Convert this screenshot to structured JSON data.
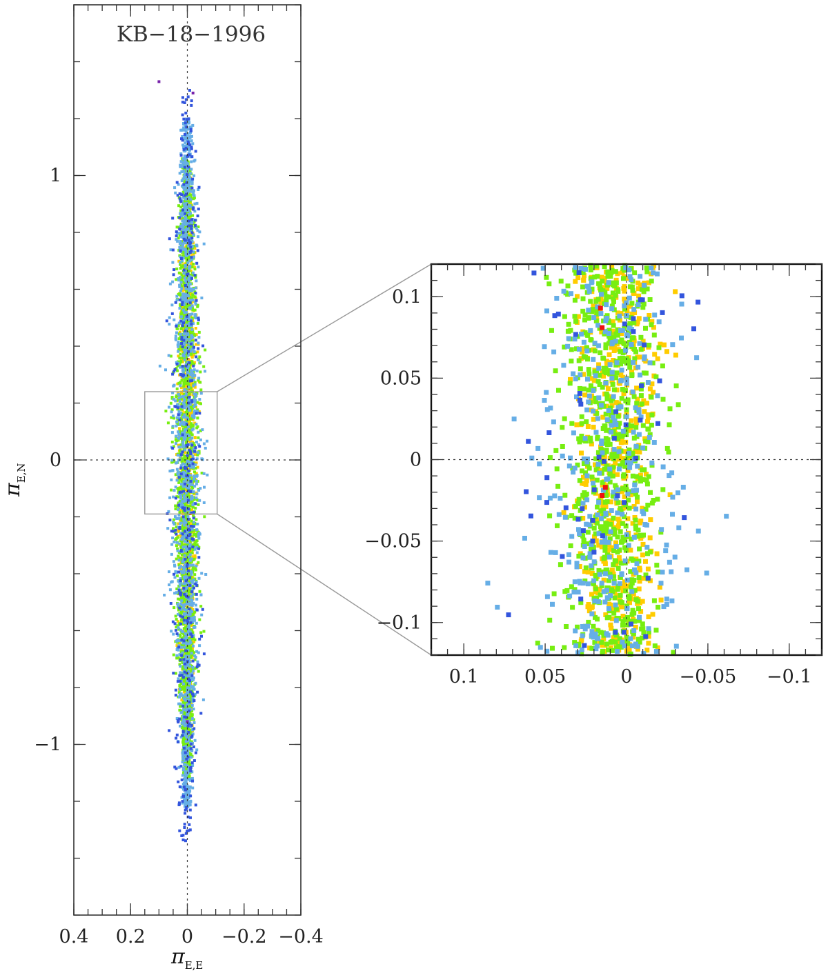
{
  "chart_data": [
    {
      "id": "main",
      "type": "scatter",
      "title": "KB−18−1996",
      "xlabel": {
        "symbol": "π",
        "subscript": "E,E"
      },
      "ylabel": {
        "symbol": "π",
        "subscript": "E,N"
      },
      "xlim": [
        0.4,
        -0.4
      ],
      "ylim": [
        -1.6,
        1.6
      ],
      "x_axis_inverted": true,
      "x_ticks": [
        {
          "value": 0.4,
          "label": "0.4"
        },
        {
          "value": 0.2,
          "label": "0.2"
        },
        {
          "value": 0,
          "label": "0"
        },
        {
          "value": -0.2,
          "label": "−0.2"
        },
        {
          "value": -0.4,
          "label": "−0.4"
        }
      ],
      "y_ticks": [
        {
          "value": 1,
          "label": "1"
        },
        {
          "value": 0,
          "label": "0"
        },
        {
          "value": -1,
          "label": "−1"
        }
      ],
      "zero_lines": true,
      "legend": "none",
      "zoom_box": {
        "x": [
          0.15,
          -0.105
        ],
        "y": [
          -0.19,
          0.24
        ]
      },
      "colors": {
        "red": "#ee1111",
        "yellow": "#ffcc00",
        "green": "#77ee11",
        "lightblue": "#66aee6",
        "blue": "#3355dd",
        "purple": "#7722aa"
      },
      "series": [
        {
          "color_key": "red",
          "x_center": 0.0,
          "x_sigma": 0.009,
          "y_range": [
            -0.68,
            0.74
          ],
          "count": 70
        },
        {
          "color_key": "yellow",
          "x_center": 0.0,
          "x_sigma": 0.015,
          "y_range": [
            -1.02,
            1.0
          ],
          "count": 1500
        },
        {
          "color_key": "green",
          "x_center": 0.002,
          "x_sigma": 0.021,
          "y_range": [
            -1.12,
            1.06
          ],
          "count": 1800
        },
        {
          "color_key": "lightblue",
          "x_center": 0.002,
          "x_sigma": 0.026,
          "y_range": [
            -1.22,
            1.2
          ],
          "count": 1300
        },
        {
          "color_key": "blue",
          "x_center": 0.004,
          "x_sigma": 0.03,
          "y_range": [
            -1.35,
            1.3
          ],
          "count": 380
        },
        {
          "color_key": "purple",
          "points": [
            [
              0.1,
              1.33
            ],
            [
              -0.02,
              1.29
            ],
            [
              0.0,
              -0.92
            ]
          ]
        }
      ]
    },
    {
      "id": "inset",
      "type": "scatter",
      "title": "",
      "xlim": [
        0.12,
        -0.12
      ],
      "ylim": [
        -0.12,
        0.12
      ],
      "x_axis_inverted": true,
      "x_ticks": [
        {
          "value": 0.1,
          "label": "0.1"
        },
        {
          "value": 0.05,
          "label": "0.05"
        },
        {
          "value": 0,
          "label": "0"
        },
        {
          "value": -0.05,
          "label": "−0.05"
        },
        {
          "value": -0.1,
          "label": "−0.1"
        }
      ],
      "y_ticks": [
        {
          "value": 0.1,
          "label": "0.1"
        },
        {
          "value": 0.05,
          "label": "0.05"
        },
        {
          "value": 0,
          "label": "0"
        },
        {
          "value": -0.05,
          "label": "−0.05"
        },
        {
          "value": -0.1,
          "label": "−0.1"
        }
      ],
      "zero_lines": true,
      "legend": "none",
      "series": [
        {
          "color_key": "yellow",
          "x_center": 0.005,
          "x_sigma": 0.012,
          "y_range": [
            -0.12,
            0.12
          ],
          "count": 500
        },
        {
          "color_key": "green",
          "x_center": 0.01,
          "x_sigma": 0.015,
          "y_range": [
            -0.12,
            0.12
          ],
          "count": 700
        },
        {
          "color_key": "lightblue",
          "x_center": 0.01,
          "x_sigma": 0.021,
          "y_range": [
            -0.12,
            0.12
          ],
          "count": 330
        },
        {
          "color_key": "blue",
          "x_center": 0.01,
          "x_sigma": 0.026,
          "y_range": [
            -0.12,
            0.12
          ],
          "count": 55
        },
        {
          "color_key": "red",
          "points": [
            [
              0.016,
              0.093
            ],
            [
              0.015,
              0.081
            ],
            [
              0.013,
              -0.017
            ],
            [
              0.015,
              -0.022
            ]
          ]
        }
      ]
    }
  ]
}
